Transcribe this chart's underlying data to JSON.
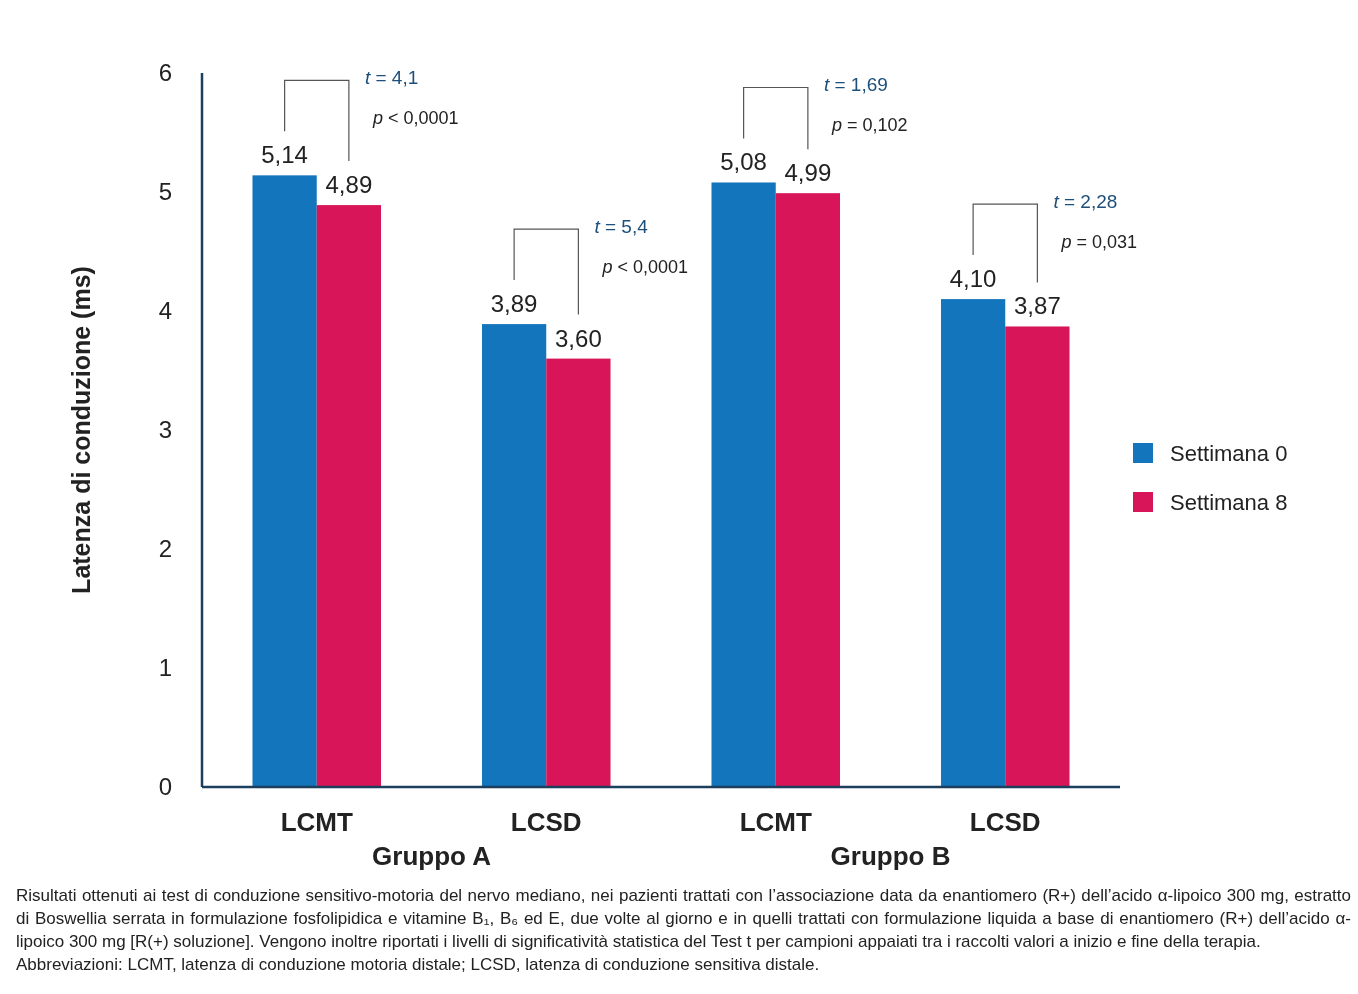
{
  "chart_data": {
    "type": "bar",
    "ylabel": "Latenza di conduzione (ms)",
    "categories": [
      "LCMT",
      "LCSD",
      "LCMT",
      "LCSD"
    ],
    "series": [
      {
        "name": "Settimana 0",
        "color": "#1375bc",
        "values": [
          5.14,
          3.89,
          5.08,
          4.1
        ],
        "value_labels": [
          "5,14",
          "3,89",
          "5,08",
          "4,10"
        ]
      },
      {
        "name": "Settimana 8",
        "color": "#d81558",
        "values": [
          4.89,
          3.6,
          4.99,
          3.87
        ],
        "value_labels": [
          "4,89",
          "3,60",
          "4,99",
          "3,87"
        ]
      }
    ],
    "ylim": [
      0,
      6
    ],
    "yticks": [
      0,
      1,
      2,
      3,
      4,
      5,
      6
    ],
    "grid": false,
    "legend": "right",
    "annotations": [
      "t = 4,1",
      "p < 0,0001",
      "t = 5,4",
      "p < 0,0001",
      "t = 1,69",
      "p = 0,102",
      "t = 2,28",
      "p = 0,031",
      "Gruppo A",
      "Gruppo B",
      "Risultati ottenuti ai test di conduzione sensitivo-motoria del nervo mediano, nei pazienti trattati con l’associazione data da enantiomero (R+) dell’acido α-lipoico 300 mg, estratto di Boswellia serrata in formulazione fosfolipidica e vitamine B₁, B₆ ed E, due volte al giorno e in quelli trattati con formulazione liquida a base di enantiomero (R+) dell’acido α-lipoico 300 mg [R(+) soluzione]. Vengono inoltre riportati i livelli di significatività statistica del Test t per campioni appaiati tra i raccolti valori a inizio e fine della terapia.",
      "Abbreviazioni: LCMT, latenza di conduzione motoria distale; LCSD, latenza di conduzione sensitiva distale."
    ]
  }
}
